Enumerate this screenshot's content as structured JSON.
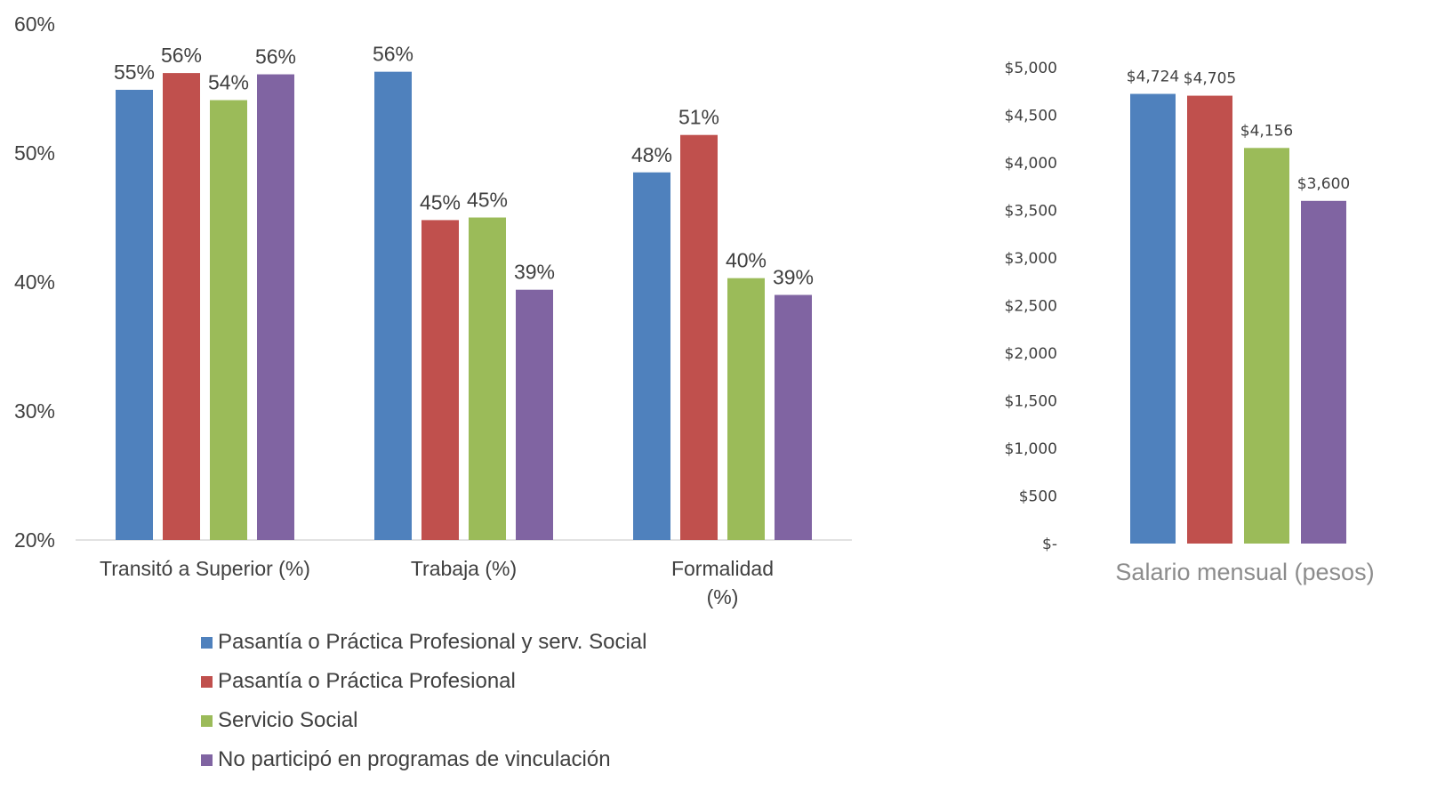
{
  "colors": [
    "#4f81bd",
    "#c0504d",
    "#9bbb59",
    "#8064a2"
  ],
  "legend": [
    "Pasantía o Práctica Profesional y serv. Social",
    "Pasantía o Práctica Profesional",
    "Servicio Social",
    "No participó en programas de vinculación"
  ],
  "chart_data": [
    {
      "type": "bar",
      "categories": [
        "Transitó a Superior (%)",
        "Trabaja (%)",
        "Formalidad (%)"
      ],
      "category_lines": [
        [
          "Transitó a Superior (%)"
        ],
        [
          "Trabaja (%)"
        ],
        [
          "Formalidad",
          "(%)"
        ]
      ],
      "series": [
        {
          "name": "Pasantía o Práctica Profesional y serv. Social",
          "values": [
            0.549,
            0.563,
            0.485
          ],
          "labels": [
            "55%",
            "56%",
            "48%"
          ]
        },
        {
          "name": "Pasantía o Práctica Profesional",
          "values": [
            0.562,
            0.448,
            0.514
          ],
          "labels": [
            "56%",
            "45%",
            "51%"
          ]
        },
        {
          "name": "Servicio Social",
          "values": [
            0.541,
            0.45,
            0.403
          ],
          "labels": [
            "54%",
            "45%",
            "40%"
          ]
        },
        {
          "name": "No participó en programas de vinculación",
          "values": [
            0.561,
            0.394,
            0.39
          ],
          "labels": [
            "56%",
            "39%",
            "39%"
          ]
        }
      ],
      "ylim": [
        0.2,
        0.6
      ],
      "yticks": [
        0.2,
        0.3,
        0.4,
        0.5,
        0.6
      ],
      "ytick_labels": [
        "20%",
        "30%",
        "40%",
        "50%",
        "60%"
      ]
    },
    {
      "type": "bar",
      "categories": [
        "Salario mensual (pesos)"
      ],
      "xlabel": "Salario mensual (pesos)",
      "values": [
        4724,
        4705,
        4156,
        3600
      ],
      "labels": [
        "$4,724",
        "$4,705",
        "$4,156",
        "$3,600"
      ],
      "ylim": [
        0,
        5000
      ],
      "yticks": [
        0,
        500,
        1000,
        1500,
        2000,
        2500,
        3000,
        3500,
        4000,
        4500,
        5000
      ],
      "ytick_labels": [
        "$-",
        "$500",
        "$1,000",
        "$1,500",
        "$2,000",
        "$2,500",
        "$3,000",
        "$3,500",
        "$4,000",
        "$4,500",
        "$5,000"
      ]
    }
  ]
}
